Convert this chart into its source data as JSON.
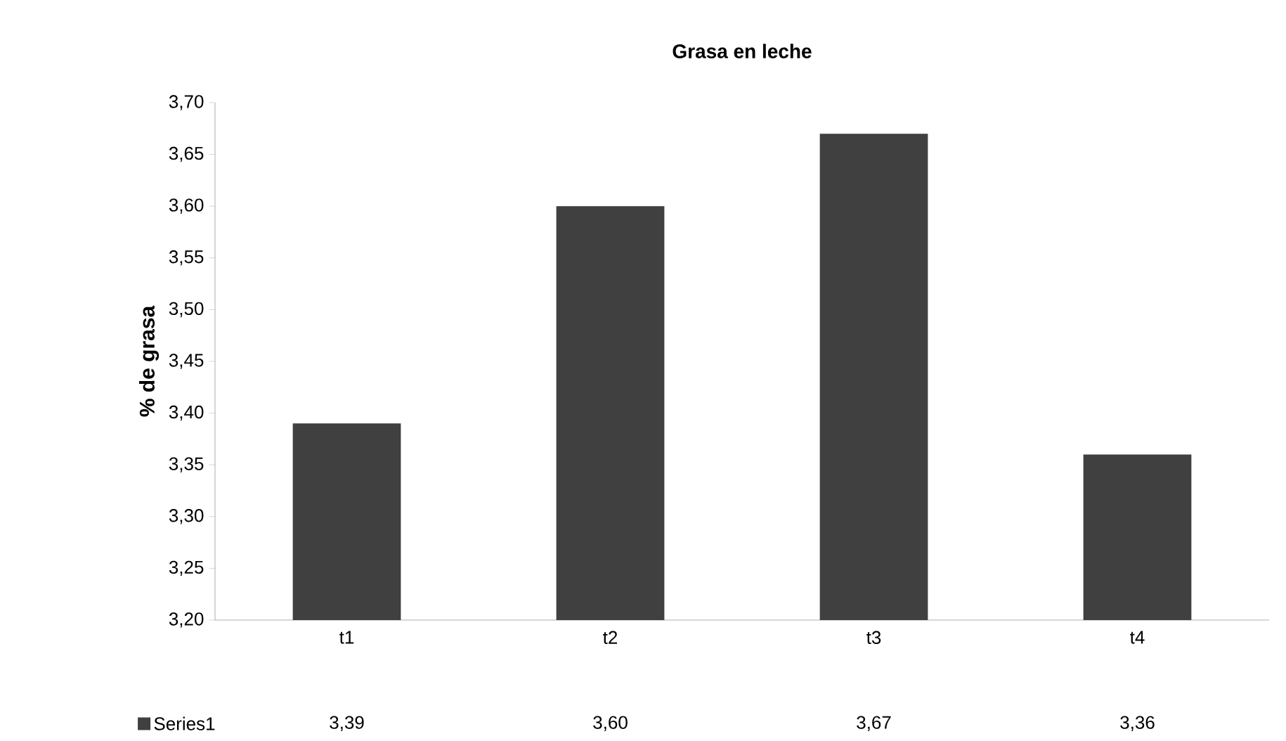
{
  "chart_data": {
    "type": "bar",
    "title": "Grasa en leche",
    "ylabel": "% de grasa",
    "categories": [
      "t1",
      "t2",
      "t3",
      "t4"
    ],
    "series": [
      {
        "name": "Series1",
        "color": "#404040",
        "values": [
          3.39,
          3.6,
          3.67,
          3.36
        ],
        "value_labels": [
          "3,39",
          "3,60",
          "3,67",
          "3,36"
        ]
      }
    ],
    "ylim": [
      3.2,
      3.7
    ],
    "yticks": [
      {
        "value": 3.2,
        "label": "3,20"
      },
      {
        "value": 3.25,
        "label": "3,25"
      },
      {
        "value": 3.3,
        "label": "3,30"
      },
      {
        "value": 3.35,
        "label": "3,35"
      },
      {
        "value": 3.4,
        "label": "3,40"
      },
      {
        "value": 3.45,
        "label": "3,45"
      },
      {
        "value": 3.5,
        "label": "3,50"
      },
      {
        "value": 3.55,
        "label": "3,55"
      },
      {
        "value": 3.6,
        "label": "3,60"
      },
      {
        "value": 3.65,
        "label": "3,65"
      },
      {
        "value": 3.7,
        "label": "3,70"
      }
    ],
    "legend": "bottom",
    "grid": false
  }
}
